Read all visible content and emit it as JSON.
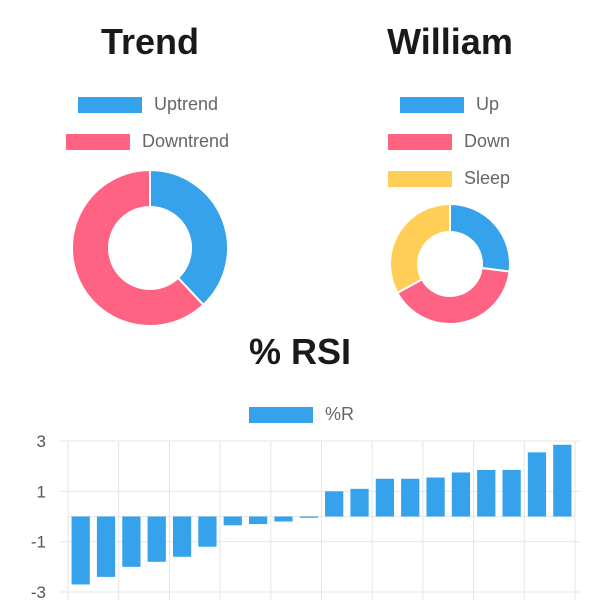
{
  "chart_data": [
    {
      "type": "pie",
      "variant": "doughnut",
      "title": "Trend",
      "legend_position": "top",
      "labels": [
        "Uptrend",
        "Downtrend"
      ],
      "values": [
        38,
        62
      ],
      "colors": [
        "#36A2EB",
        "#FF6384"
      ]
    },
    {
      "type": "pie",
      "variant": "doughnut",
      "title": "William",
      "legend_position": "top",
      "labels": [
        "Up",
        "Down",
        "Sleep"
      ],
      "values": [
        27,
        40,
        33
      ],
      "colors": [
        "#36A2EB",
        "#FF6384",
        "#FFCE56"
      ]
    },
    {
      "type": "bar",
      "title": "% RSI",
      "legend_position": "top",
      "series": [
        {
          "name": "%R",
          "color": "#36A2EB",
          "values": [
            -2.7,
            -2.4,
            -2.0,
            -1.8,
            -1.6,
            -1.2,
            -0.35,
            -0.3,
            -0.2,
            -0.05,
            1.0,
            1.1,
            1.5,
            1.5,
            1.55,
            1.75,
            1.85,
            1.85,
            2.55,
            2.85
          ]
        }
      ],
      "ylim": [
        -3,
        3
      ],
      "yticks": [
        "3",
        "1",
        "-1",
        "-3"
      ],
      "ytick_values": [
        3,
        1,
        -1,
        -3
      ],
      "grid": true
    }
  ]
}
